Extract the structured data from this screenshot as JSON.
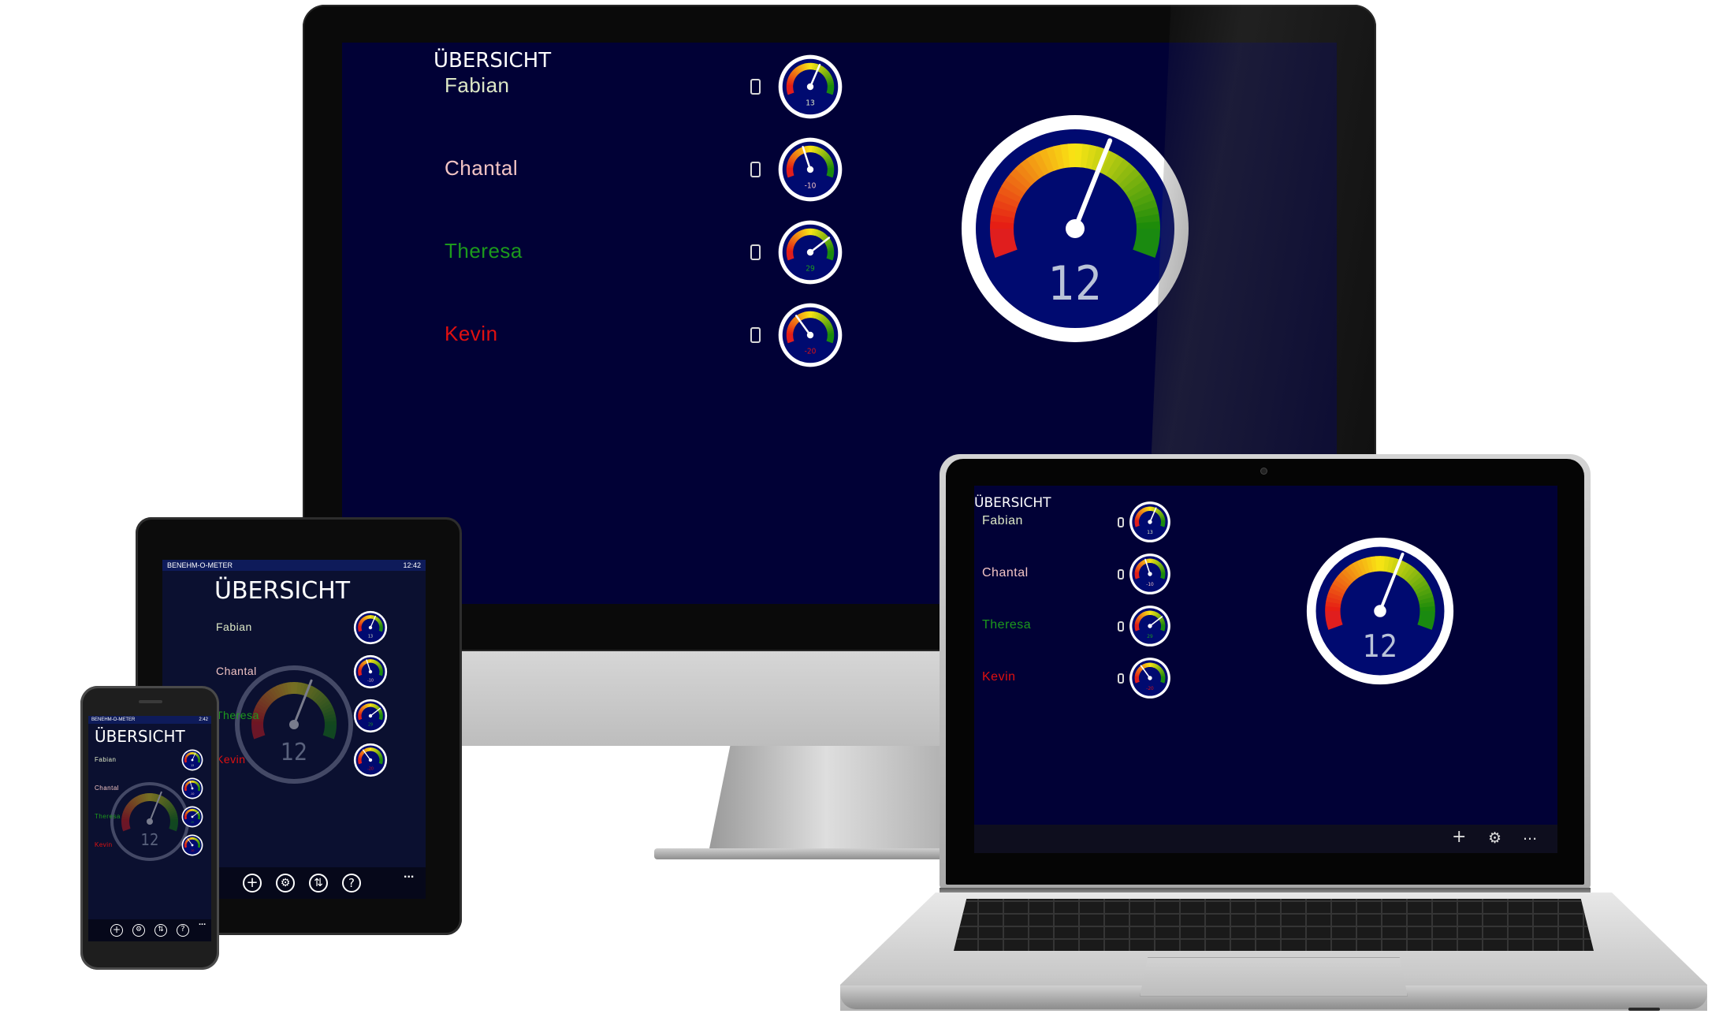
{
  "app": {
    "title": "ÜBERSICHT",
    "status_left": "BENEHM-O-METER",
    "tablet_time": "12:42",
    "phone_time": "2:42"
  },
  "people": [
    {
      "name": "Fabian",
      "value": 13,
      "color": "#dde8c6"
    },
    {
      "name": "Chantal",
      "value": -10,
      "color": "#f2c4c4"
    },
    {
      "name": "Theresa",
      "value": 29,
      "color": "#1c9a1c"
    },
    {
      "name": "Kevin",
      "value": -20,
      "color": "#e01010"
    }
  ],
  "main_gauge": {
    "value": 12
  },
  "icons": {
    "person_device": "phone-icon",
    "appbar": [
      "add-icon",
      "settings-icon",
      "sync-icon",
      "help-icon",
      "more-icon"
    ]
  },
  "appbar": {
    "more": "...",
    "add": "+",
    "settings": "⚙",
    "sync": "⇅",
    "help": "?"
  },
  "colors": {
    "screen_bg": "#010136",
    "gauge_bg": "#000a70",
    "gauge_ring": "#ffffff"
  }
}
